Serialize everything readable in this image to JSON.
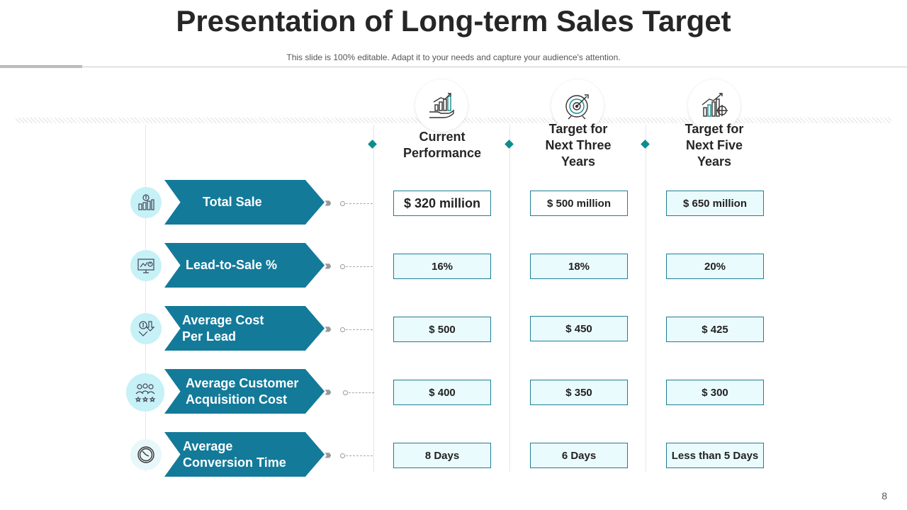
{
  "slide": {
    "title": "Presentation of Long-term Sales Target",
    "subtitle": "This slide is 100% editable. Adapt it to your needs and capture your audience's attention.",
    "page_number": "8"
  },
  "columns": [
    {
      "label_line1": "Current",
      "label_line2": "Performance",
      "label_line3": "",
      "icon": "hand-growth-chart-icon"
    },
    {
      "label_line1": "Target for",
      "label_line2": "Next Three",
      "label_line3": "Years",
      "icon": "target-dartboard-icon"
    },
    {
      "label_line1": "Target for",
      "label_line2": "Next Five",
      "label_line3": "Years",
      "icon": "bar-chart-crosshair-icon"
    }
  ],
  "rows": [
    {
      "label_line1": "Total Sale",
      "label_line2": "",
      "icon": "money-bars-icon",
      "values": [
        "$ 320 million",
        "$ 500 million",
        "$ 650 million"
      ]
    },
    {
      "label_line1": "Lead-to-Sale %",
      "label_line2": "",
      "icon": "monitor-chart-icon",
      "values": [
        "16%",
        "18%",
        "20%"
      ]
    },
    {
      "label_line1": "Average Cost",
      "label_line2": "Per Lead",
      "icon": "dollar-down-arrow-icon",
      "values": [
        "$ 500",
        "$ 450",
        "$ 425"
      ]
    },
    {
      "label_line1": "Average Customer",
      "label_line2": "Acquisition Cost",
      "icon": "customer-group-stars-icon",
      "values": [
        "$ 400",
        "$ 350",
        "$ 300"
      ]
    },
    {
      "label_line1": "Average",
      "label_line2": "Conversion Time",
      "icon": "clock-icon",
      "values": [
        "8 Days",
        "6 Days",
        "Less than 5 Days"
      ]
    }
  ],
  "colors": {
    "accent": "#137a9a",
    "teal": "#0e8c8c",
    "cell_bg": "#eafbfd",
    "icon_bg": "#c6f1f6"
  }
}
